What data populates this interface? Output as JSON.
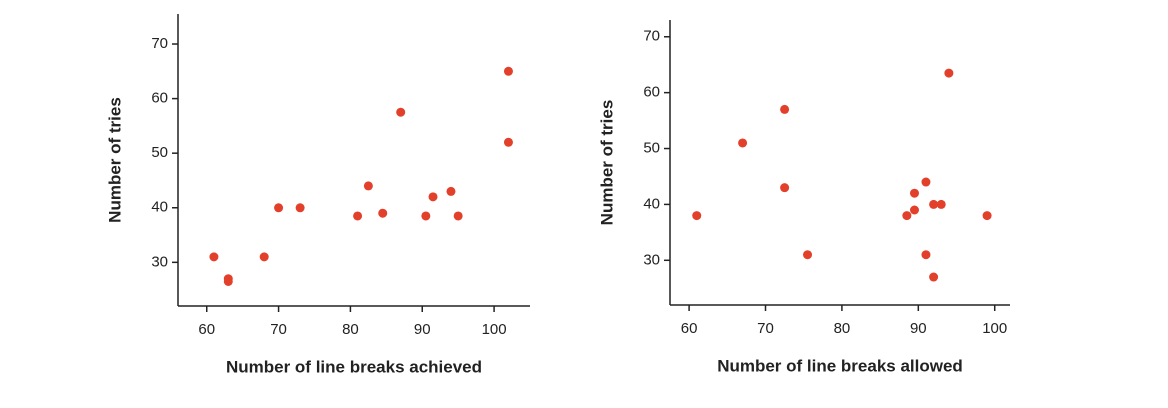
{
  "chart_data": [
    {
      "type": "scatter",
      "x_label": "Number of line breaks achieved",
      "y_label": "Number of tries",
      "color": "#e2402b",
      "x": [
        61,
        63,
        63,
        68,
        70,
        73,
        81,
        82.5,
        84.5,
        87,
        90.5,
        91.5,
        94,
        95,
        102,
        102
      ],
      "values": [
        31,
        27,
        26.5,
        31,
        40,
        40,
        38.5,
        44,
        39,
        57.5,
        38.5,
        42,
        43,
        38.5,
        65,
        52
      ],
      "xlim": [
        56,
        105
      ],
      "ylim": [
        22,
        75.5
      ],
      "xticks": [
        60,
        70,
        80,
        90,
        100
      ],
      "yticks": [
        30,
        40,
        50,
        60,
        70
      ]
    },
    {
      "type": "scatter",
      "x_label": "Number of line breaks allowed",
      "y_label": "Number of tries",
      "color": "#e2402b",
      "x": [
        61,
        67,
        72.5,
        72.5,
        75.5,
        88.5,
        89.5,
        89.5,
        91,
        91,
        92,
        93,
        92,
        94,
        99
      ],
      "values": [
        38,
        51,
        57,
        43,
        31,
        38,
        42,
        39,
        44,
        31,
        40,
        40,
        27,
        63.5,
        38
      ],
      "xlim": [
        57.5,
        102
      ],
      "ylim": [
        22,
        73
      ],
      "xticks": [
        60,
        70,
        80,
        90,
        100
      ],
      "yticks": [
        30,
        40,
        50,
        60,
        70
      ]
    }
  ]
}
